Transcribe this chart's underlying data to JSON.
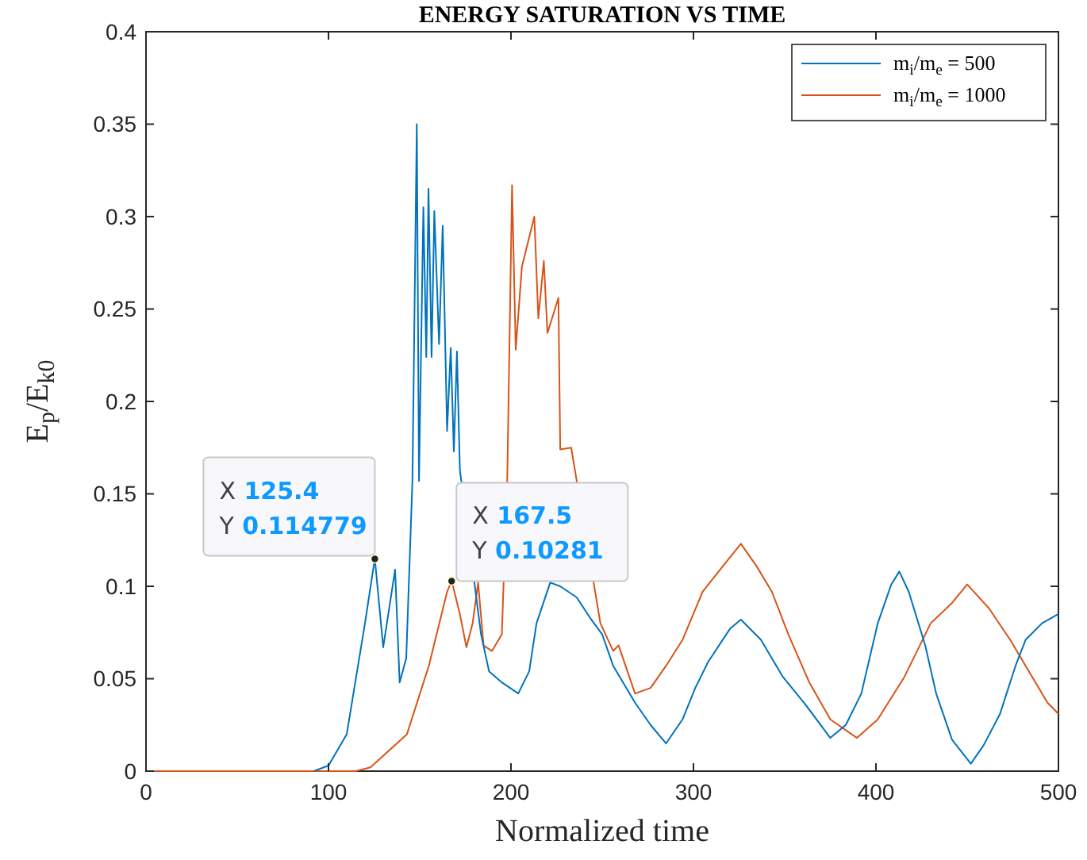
{
  "chart_data": {
    "type": "line",
    "title": "ENERGY SATURATION VS TIME",
    "xlabel": "Normalized time",
    "ylabel": "E$_{p}$/E$_{k0}$",
    "xlim": [
      0,
      500
    ],
    "ylim": [
      0,
      0.4
    ],
    "xticks": [
      0,
      100,
      200,
      300,
      400,
      500
    ],
    "yticks": [
      0,
      0.05,
      0.1,
      0.15,
      0.2,
      0.25,
      0.3,
      0.35,
      0.4
    ],
    "grid": false,
    "legend": "top right",
    "marker": "none",
    "line_style": "solid",
    "series": [
      {
        "name": "m$_{i}$/m$_{e}$ = 500",
        "color": "#0072bd",
        "x": [
          92,
          100,
          110,
          120,
          125.4,
          130,
          136.5,
          139,
          142.6,
          146,
          148.4,
          149.6,
          152,
          153.6,
          154.8,
          156.5,
          158,
          160.6,
          162.6,
          165,
          167,
          168.7,
          170.4,
          172,
          183.6,
          188,
          195,
          204,
          210,
          214,
          221.5,
          227,
          236,
          244,
          250,
          256,
          268,
          276.5,
          285,
          294,
          301,
          308,
          320,
          326,
          337,
          349,
          360.6,
          375,
          383.5,
          392,
          401,
          408.4,
          412.8,
          418,
          427,
          433,
          441.7,
          452,
          459,
          468,
          476.5,
          482,
          491,
          500
        ],
        "values": [
          0,
          0.003,
          0.02,
          0.08,
          0.115,
          0.067,
          0.109,
          0.048,
          0.061,
          0.157,
          0.35,
          0.157,
          0.305,
          0.224,
          0.315,
          0.224,
          0.303,
          0.231,
          0.295,
          0.184,
          0.229,
          0.173,
          0.227,
          0.163,
          0.074,
          0.054,
          0.048,
          0.042,
          0.054,
          0.08,
          0.102,
          0.1,
          0.094,
          0.082,
          0.074,
          0.057,
          0.037,
          0.025,
          0.015,
          0.028,
          0.045,
          0.059,
          0.077,
          0.082,
          0.071,
          0.051,
          0.037,
          0.018,
          0.025,
          0.042,
          0.08,
          0.101,
          0.108,
          0.097,
          0.068,
          0.042,
          0.017,
          0.004,
          0.014,
          0.031,
          0.057,
          0.071,
          0.08,
          0.085
        ]
      },
      {
        "name": "m$_{i}$/m$_{e}$ = 1000",
        "color": "#d95319",
        "x": [
          0,
          115,
          123,
          143,
          155,
          165,
          167.5,
          172,
          175.6,
          179,
          182,
          185,
          189.6,
          195,
          198,
          200.6,
          202.6,
          206,
          212.8,
          215,
          218,
          220,
          226,
          227,
          233,
          249,
          256,
          259,
          268,
          276.5,
          285,
          294,
          305,
          317,
          326,
          334.5,
          343,
          352,
          363.5,
          375,
          389.6,
          401,
          415.6,
          430,
          441.7,
          450,
          462,
          473.6,
          482,
          494,
          500
        ],
        "values": [
          0,
          0,
          0.002,
          0.02,
          0.057,
          0.097,
          0.103,
          0.085,
          0.067,
          0.08,
          0.102,
          0.068,
          0.065,
          0.074,
          0.16,
          0.317,
          0.228,
          0.273,
          0.3,
          0.245,
          0.276,
          0.237,
          0.256,
          0.174,
          0.175,
          0.08,
          0.065,
          0.068,
          0.042,
          0.045,
          0.057,
          0.071,
          0.097,
          0.112,
          0.123,
          0.111,
          0.097,
          0.074,
          0.048,
          0.028,
          0.018,
          0.028,
          0.051,
          0.08,
          0.091,
          0.101,
          0.088,
          0.071,
          0.057,
          0.037,
          0.031
        ]
      }
    ],
    "annotations": [
      {
        "text": "X 125.4\nY 0.114779",
        "x": 125.4,
        "y": 0.114779
      },
      {
        "text": "X 167.5\nY 0.10281",
        "x": 167.5,
        "y": 0.10281
      }
    ]
  }
}
